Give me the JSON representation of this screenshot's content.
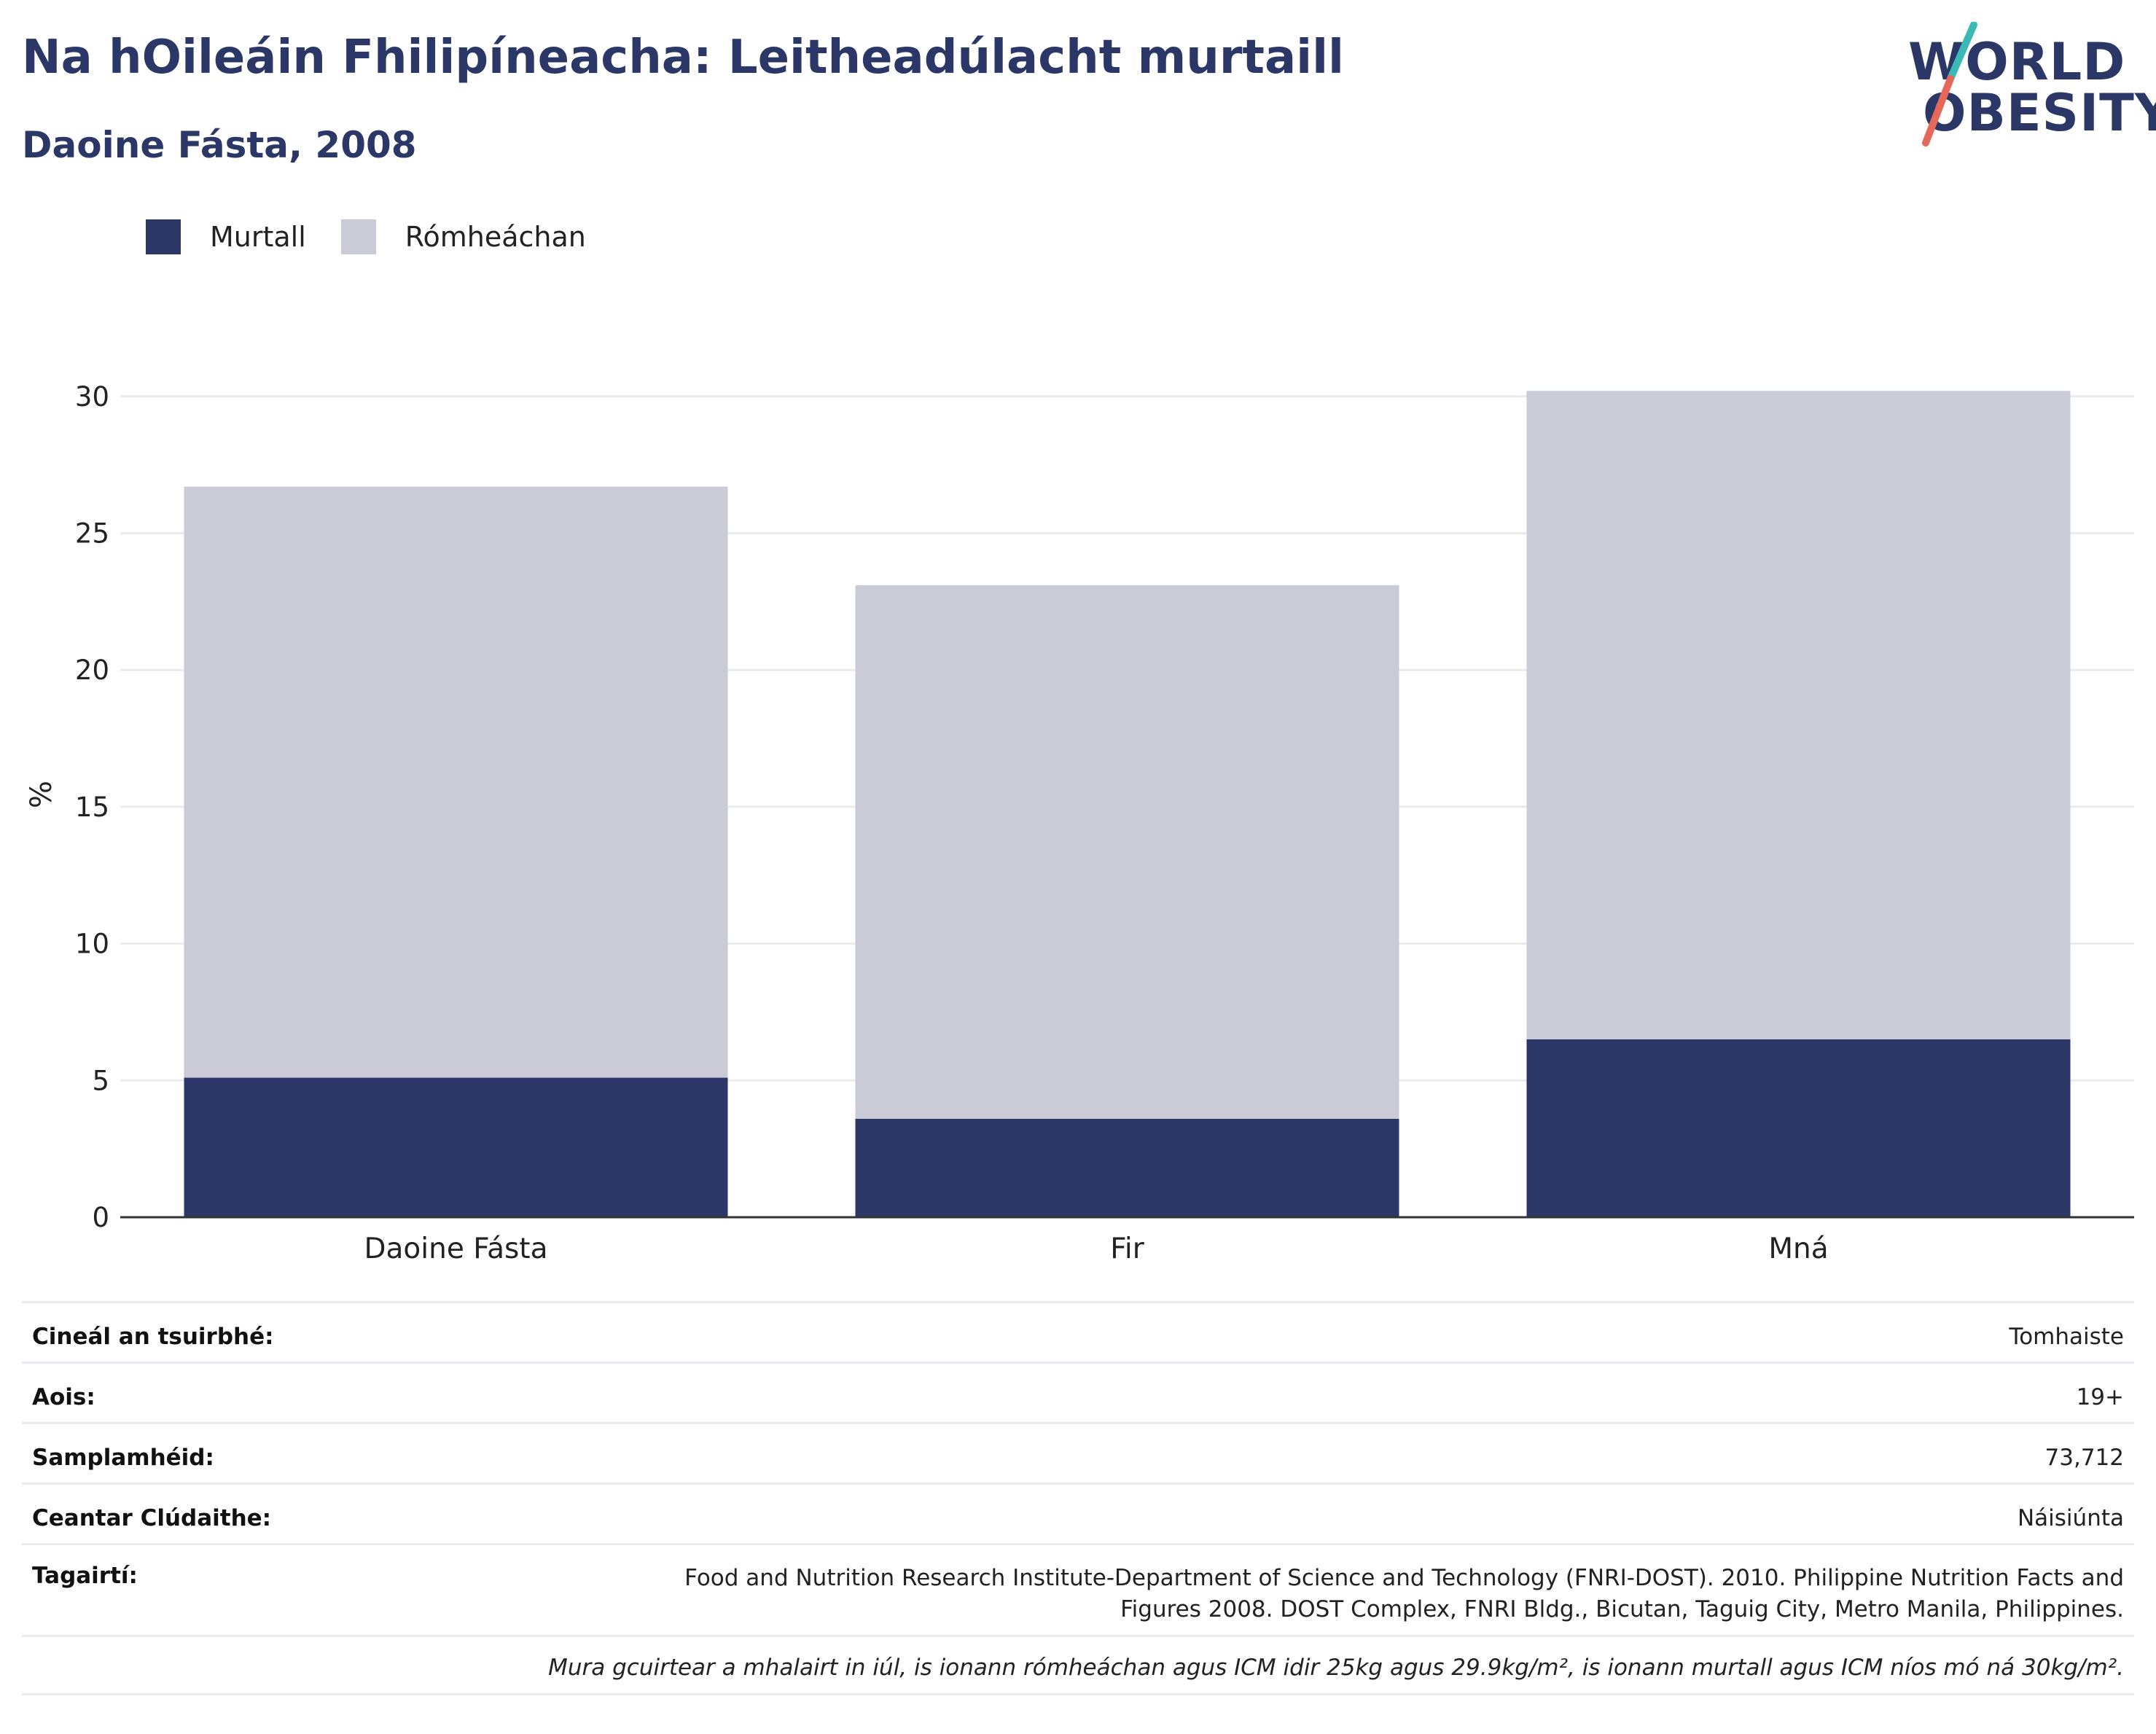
{
  "header": {
    "title": "Na hOileáin Fhilipíneacha: Leitheadúlacht murtaill",
    "subtitle": "Daoine Fásta, 2008"
  },
  "logo": {
    "line1": "WORLD",
    "line2": "OBESITY",
    "slash_colors": [
      "#3bb9b6",
      "#e5685a"
    ]
  },
  "legend": [
    {
      "label": "Murtall",
      "color": "#2b3766"
    },
    {
      "label": "Rómheáchan",
      "color": "#cacbd7"
    }
  ],
  "chart_data": {
    "type": "bar",
    "stacked": true,
    "categories": [
      "Daoine Fásta",
      "Fir",
      "Mná"
    ],
    "series": [
      {
        "name": "Murtall",
        "values": [
          5.1,
          3.6,
          6.5
        ],
        "color": "#2b3766"
      },
      {
        "name": "Rómheáchan",
        "values": [
          21.6,
          19.5,
          23.7
        ],
        "color": "#cacbd7"
      }
    ],
    "ylabel": "%",
    "ylim": [
      0,
      30.9
    ],
    "yticks": [
      0,
      5,
      10,
      15,
      20,
      25,
      30
    ],
    "grid": true,
    "legend_position": "top-left"
  },
  "info": {
    "rows": [
      {
        "key": "Cineál an tsuirbhé:",
        "value": "Tomhaiste"
      },
      {
        "key": "Aois:",
        "value": "19+"
      },
      {
        "key": "Samplamhéid:",
        "value": "73,712"
      },
      {
        "key": "Ceantar Clúdaithe:",
        "value": "Náisiúnta"
      }
    ],
    "reference_key": "Tagairtí:",
    "reference_value": "Food and Nutrition Research Institute-Department of Science and Technology (FNRI-DOST). 2010. Philippine Nutrition Facts and Figures 2008. DOST Complex, FNRI Bldg., Bicutan, Taguig City, Metro Manila, Philippines.",
    "note": "Mura gcuirtear a mhalairt in iúl, is ionann rómheáchan agus ICM idir 25kg agus 29.9kg/m², is ionann murtall agus ICM níos mó ná 30kg/m²."
  }
}
